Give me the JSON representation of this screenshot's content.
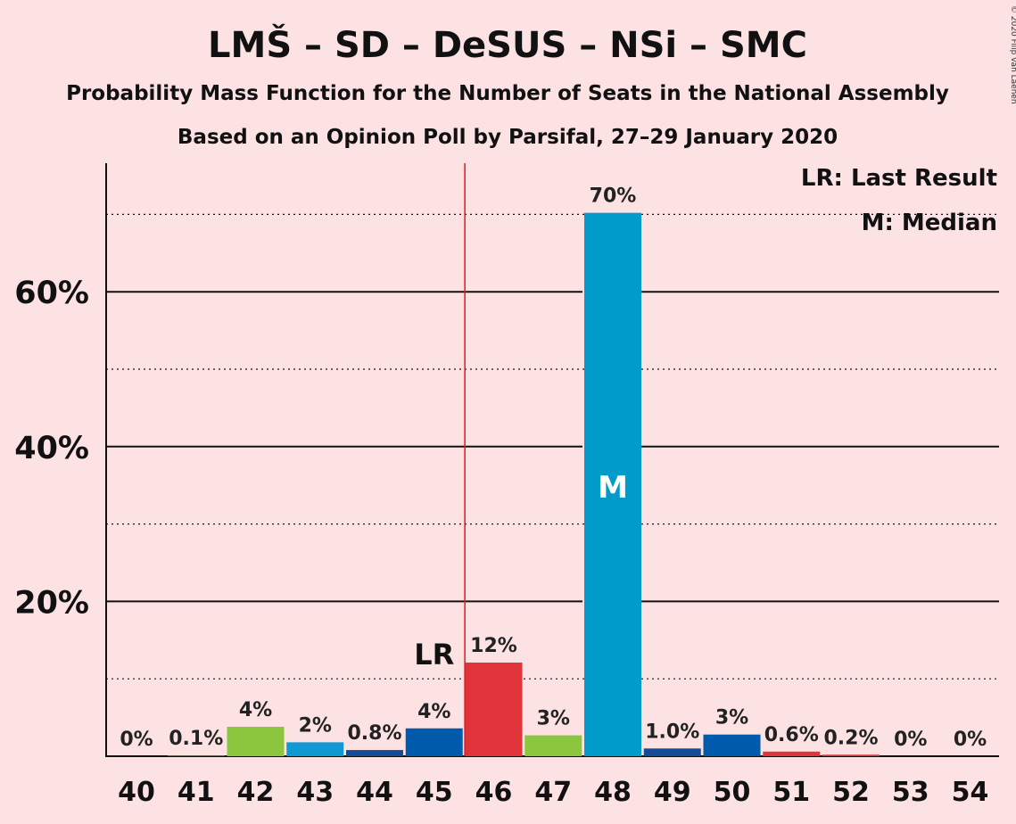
{
  "chart_data": {
    "type": "bar",
    "title": "LMŠ – SD – DeSUS – NSi – SMC",
    "subtitle": "Probability Mass Function for the Number of Seats in the National Assembly",
    "subtitle2": "Based on an Opinion Poll by Parsifal, 27–29 January 2020",
    "copyright": "© 2020 Filip van Laenen",
    "categories": [
      "40",
      "41",
      "42",
      "43",
      "44",
      "45",
      "46",
      "47",
      "48",
      "49",
      "50",
      "51",
      "52",
      "53",
      "54"
    ],
    "values": [
      0,
      0.1,
      4,
      2,
      0.8,
      4,
      12,
      3,
      70,
      1.0,
      3,
      0.6,
      0.2,
      0,
      0
    ],
    "value_labels": [
      "0%",
      "0.1%",
      "4%",
      "2%",
      "0.8%",
      "4%",
      "12%",
      "3%",
      "70%",
      "1.0%",
      "3%",
      "0.6%",
      "0.2%",
      "0%",
      "0%"
    ],
    "bar_heights_pct": [
      0,
      0.1,
      3.8,
      1.8,
      0.8,
      3.6,
      12.1,
      2.7,
      70.2,
      1.0,
      2.8,
      0.6,
      0.2,
      0,
      0
    ],
    "colors": [
      "#e1333a",
      "#e1333a",
      "#8cc63f",
      "#0f9ad3",
      "#134b96",
      "#005aab",
      "#e1333a",
      "#8cc63f",
      "#009bc9",
      "#134b96",
      "#005aab",
      "#e1333a",
      "#e1333a",
      "#e1333a",
      "#e1333a"
    ],
    "ylim": [
      0,
      76
    ],
    "yticks": [
      20,
      40,
      60
    ],
    "ytick_labels": [
      "20%",
      "40%",
      "60%"
    ],
    "minor_gridlines": [
      10,
      30,
      50,
      70
    ],
    "last_result_seat": "45",
    "last_result_label": "LR",
    "median_seat": "48",
    "median_label": "M",
    "legend": {
      "lr": "LR: Last Result",
      "median": "M: Median"
    }
  }
}
